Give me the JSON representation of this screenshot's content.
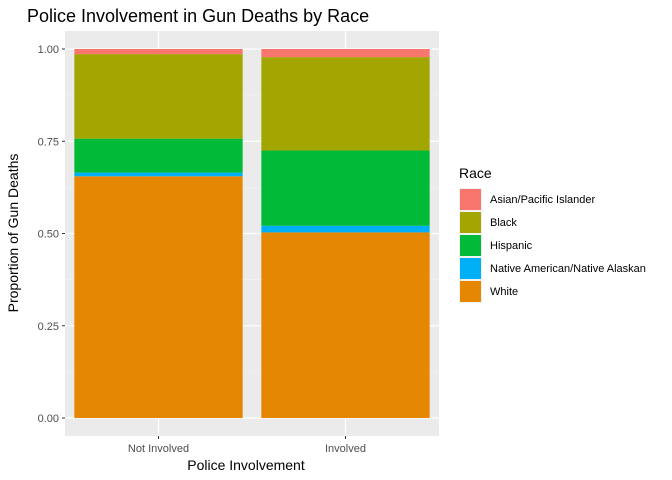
{
  "chart_data": {
    "type": "bar",
    "stacked": true,
    "title": "Police Involvement in Gun Deaths by Race",
    "xlabel": "Police Involvement",
    "ylabel": "Proportion of Gun Deaths",
    "ylim": [
      0,
      1
    ],
    "yticks": [
      "0.00",
      "0.25",
      "0.50",
      "0.75",
      "1.00"
    ],
    "grid": true,
    "legend_position": "right",
    "legend_title": "Race",
    "categories": [
      "Not Involved",
      "Involved"
    ],
    "series": [
      {
        "name": "White",
        "color": "#E58700",
        "values": [
          0.655,
          0.503
        ]
      },
      {
        "name": "Native American/Native Alaskan",
        "color": "#00B0F6",
        "values": [
          0.01,
          0.018
        ]
      },
      {
        "name": "Hispanic",
        "color": "#00BA38",
        "values": [
          0.092,
          0.204
        ]
      },
      {
        "name": "Black",
        "color": "#A3A500",
        "values": [
          0.229,
          0.253
        ]
      },
      {
        "name": "Asian/Pacific Islander",
        "color": "#F8766D",
        "values": [
          0.014,
          0.022
        ]
      }
    ],
    "legend_order": [
      "Asian/Pacific Islander",
      "Black",
      "Hispanic",
      "Native American/Native Alaskan",
      "White"
    ]
  }
}
